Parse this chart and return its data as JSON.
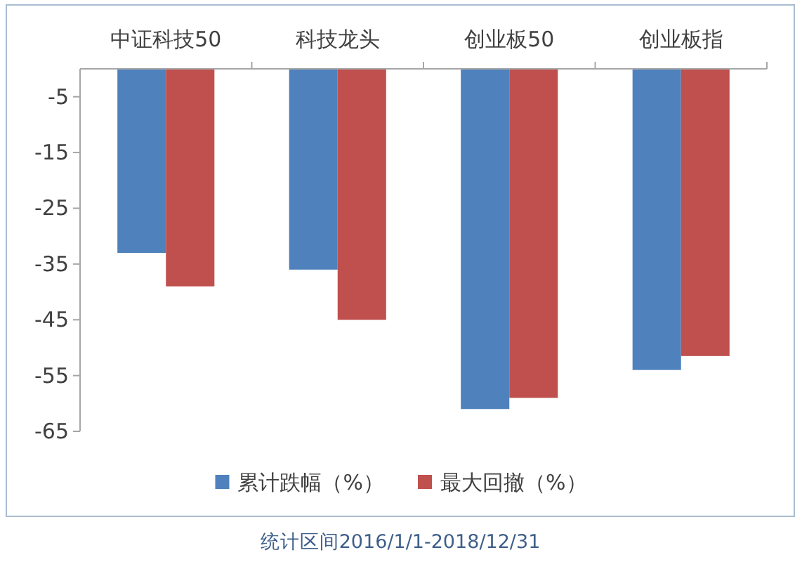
{
  "chart_data": {
    "type": "bar",
    "categories": [
      "中证科技50",
      "科技龙头",
      "创业板50",
      "创业板指"
    ],
    "series": [
      {
        "name": "累计跌幅（%）",
        "color": "#4f81bd",
        "values": [
          -33,
          -36,
          -61,
          -54
        ]
      },
      {
        "name": "最大回撤（%）",
        "color": "#c0504d",
        "values": [
          -39,
          -45,
          -59,
          -51.5
        ]
      }
    ],
    "ylim": [
      -65,
      0
    ],
    "yticks": [
      -5,
      -15,
      -25,
      -35,
      -45,
      -55,
      -65
    ],
    "legend": "bottom",
    "annotations": [
      "统计区间2016/1/1-2018/12/31"
    ]
  }
}
